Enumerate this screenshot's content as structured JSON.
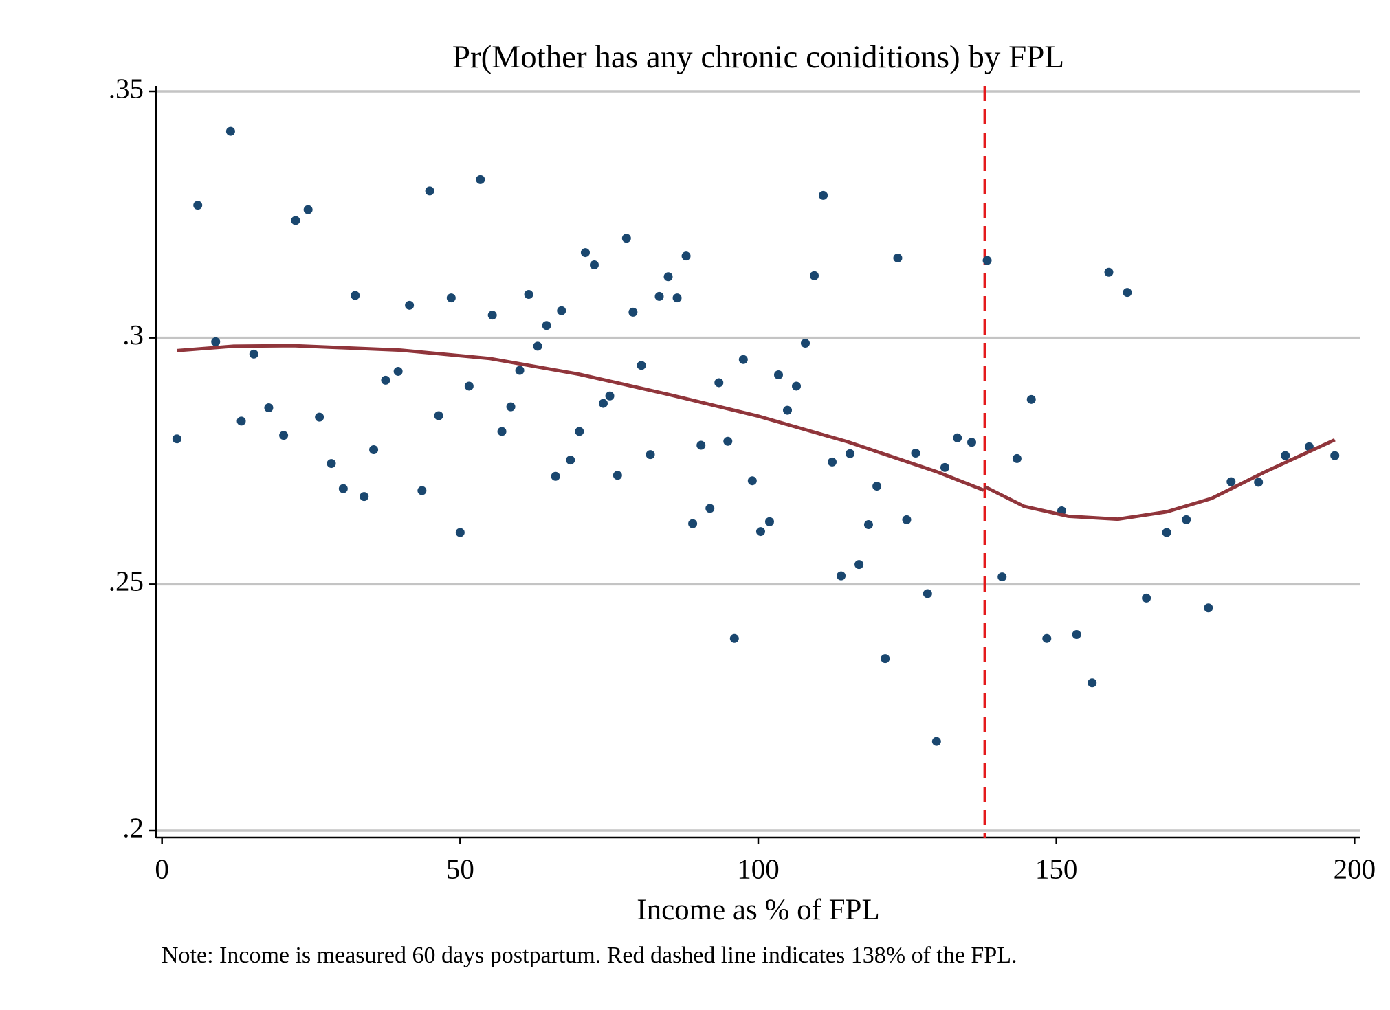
{
  "chart_data": {
    "type": "scatter",
    "title": "Pr(Mother has any chronic coniditions) by FPL",
    "x_label": "Income as % of FPL",
    "note": "Note: Income is measured 60 days postpartum. Red dashed line indicates 138% of the FPL.",
    "xlim": [
      -1,
      201
    ],
    "ylim": [
      0.2,
      0.35
    ],
    "xticks": [
      0,
      50,
      100,
      150,
      200
    ],
    "yticks": [
      {
        "value": 0.35,
        "label": ".35"
      },
      {
        "value": 0.3,
        "label": ".3"
      },
      {
        "value": 0.25,
        "label": ".25"
      },
      {
        "value": 0.2,
        "label": ".2"
      }
    ],
    "grid": true,
    "color": "#1a476f",
    "x": [
      2.5,
      6.0,
      9.0,
      11.5,
      13.3,
      15.4,
      17.9,
      20.4,
      22.4,
      24.5,
      26.4,
      28.4,
      30.4,
      32.4,
      33.9,
      35.5,
      37.5,
      39.6,
      41.5,
      43.6,
      44.9,
      46.4,
      48.5,
      50.0,
      51.5,
      53.4,
      55.4,
      57.0,
      58.5,
      60.0,
      61.5,
      63.0,
      64.5,
      66.0,
      67.0,
      68.5,
      70.0,
      71.0,
      72.5,
      74.0,
      75.1,
      76.4,
      77.9,
      79.0,
      80.4,
      81.9,
      83.4,
      84.9,
      86.4,
      87.9,
      89.0,
      90.4,
      91.9,
      93.4,
      94.9,
      96.0,
      97.5,
      99.0,
      100.4,
      101.9,
      103.4,
      104.9,
      106.4,
      107.9,
      109.4,
      110.9,
      112.4,
      113.9,
      115.4,
      116.9,
      118.5,
      119.9,
      121.3,
      123.4,
      124.9,
      126.4,
      128.4,
      129.9,
      131.3,
      133.4,
      135.8,
      138.4,
      140.9,
      143.4,
      145.8,
      148.4,
      150.9,
      153.4,
      156.0,
      158.8,
      161.9,
      165.1,
      168.5,
      171.8,
      175.5,
      179.3,
      183.9,
      188.4,
      192.4,
      196.7
    ],
    "values": [
      0.2795,
      0.3269,
      0.2992,
      0.3419,
      0.2831,
      0.2967,
      0.2858,
      0.2802,
      0.3238,
      0.326,
      0.2839,
      0.2745,
      0.2694,
      0.3086,
      0.2678,
      0.2773,
      0.2914,
      0.2932,
      0.3066,
      0.269,
      0.3298,
      0.2842,
      0.3081,
      0.2605,
      0.2902,
      0.3321,
      0.3046,
      0.281,
      0.286,
      0.2934,
      0.3088,
      0.2983,
      0.3025,
      0.2719,
      0.3055,
      0.2752,
      0.281,
      0.3173,
      0.3148,
      0.2867,
      0.2882,
      0.2721,
      0.3202,
      0.3052,
      0.2944,
      0.2763,
      0.3084,
      0.3124,
      0.3081,
      0.3166,
      0.2623,
      0.2782,
      0.2654,
      0.2909,
      0.279,
      0.239,
      0.2956,
      0.271,
      0.2607,
      0.2627,
      0.2925,
      0.2853,
      0.2902,
      0.2989,
      0.3126,
      0.3289,
      0.2748,
      0.2517,
      0.2765,
      0.254,
      0.2621,
      0.2699,
      0.2349,
      0.3162,
      0.2631,
      0.2766,
      0.2481,
      0.2181,
      0.2737,
      0.2797,
      0.2788,
      0.3157,
      0.2515,
      0.2755,
      0.2875,
      0.239,
      0.2649,
      0.2398,
      0.23,
      0.3133,
      0.3092,
      0.2472,
      0.2605,
      0.2631,
      0.2452,
      0.2708,
      0.2707,
      0.2761,
      0.2779,
      0.2761
    ],
    "fit_color": "#90353b",
    "fit_lines": [
      {
        "x": [
          2.5,
          12,
          22,
          40,
          55,
          70,
          85,
          100,
          115,
          130,
          137.8
        ],
        "values": [
          0.2974,
          0.2983,
          0.2984,
          0.2975,
          0.2958,
          0.2926,
          0.2885,
          0.2841,
          0.2789,
          0.2728,
          0.2691
        ]
      },
      {
        "x": [
          138,
          144.6,
          152,
          160.3,
          168.5,
          176,
          185,
          196.7
        ],
        "values": [
          0.2698,
          0.2658,
          0.2638,
          0.2632,
          0.2647,
          0.2674,
          0.2728,
          0.2793
        ]
      }
    ],
    "reference_line": {
      "x": 138,
      "color": "#e41a1c",
      "dashed": true
    }
  }
}
